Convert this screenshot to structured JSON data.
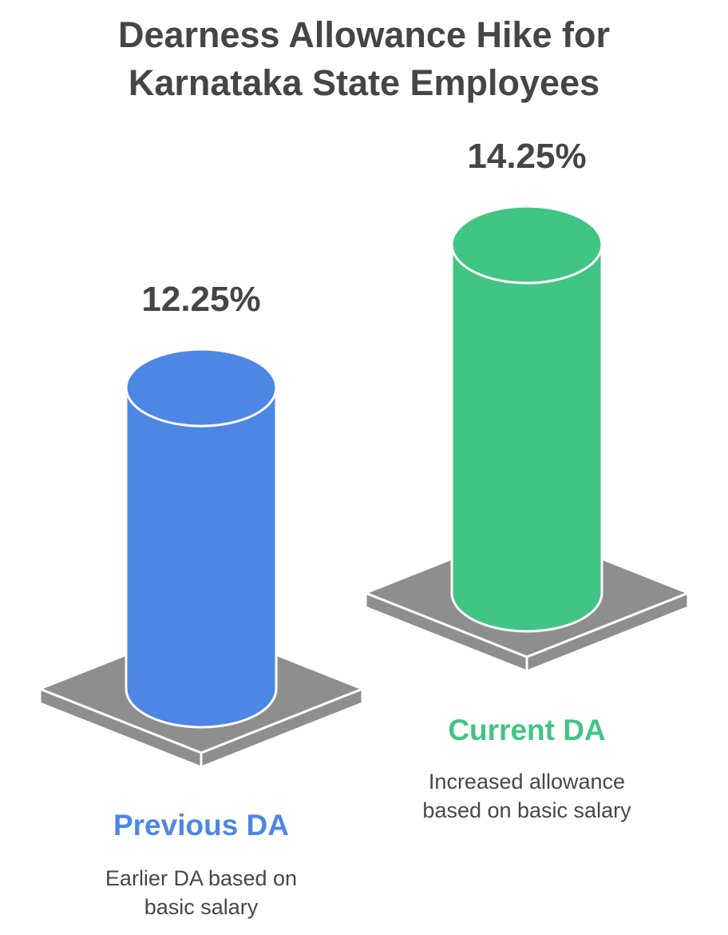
{
  "title_lines": [
    "Dearness Allowance Hike for",
    "Karnataka State Employees"
  ],
  "chart_data": {
    "type": "bar",
    "title": "Dearness Allowance Hike for Karnataka State Employees",
    "categories": [
      "Previous DA",
      "Current DA"
    ],
    "values": [
      12.25,
      14.25
    ],
    "value_labels": [
      "12.25%",
      "14.25%"
    ],
    "unit": "%",
    "descriptions": [
      "Earlier DA based on basic salary",
      "Increased allowance based on basic salary"
    ],
    "description_lines": [
      [
        "Earlier DA based on",
        "basic salary"
      ],
      [
        "Increased allowance",
        "based on basic salary"
      ]
    ],
    "colors": [
      "#4d86e4",
      "#41c584"
    ],
    "pedestal_color": "#8e8e8e"
  }
}
